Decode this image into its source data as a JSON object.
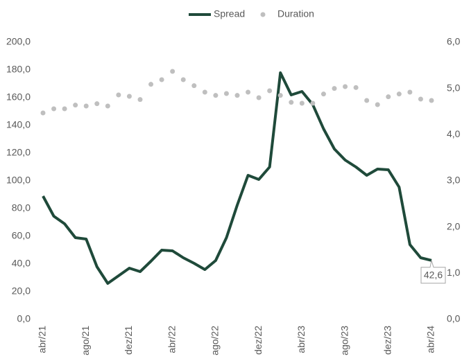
{
  "chart_data": {
    "type": "line",
    "categories": [
      "abr/21",
      null,
      null,
      null,
      "ago/21",
      null,
      null,
      null,
      "dez/21",
      null,
      null,
      null,
      "abr/22",
      null,
      null,
      null,
      "ago/22",
      null,
      null,
      null,
      "dez/22",
      null,
      null,
      null,
      "abr/23",
      null,
      null,
      null,
      "ago/23",
      null,
      null,
      null,
      "dez/23",
      null,
      null,
      null,
      "abr/24"
    ],
    "series": [
      {
        "name": "Spread",
        "color": "#1f4a3a",
        "axis": "y",
        "style": "line",
        "values": [
          89,
          74.5,
          69,
          59,
          58,
          38,
          26,
          31.5,
          37,
          34.5,
          42,
          50,
          49.5,
          44.5,
          40.5,
          36,
          42.5,
          59,
          82.5,
          104,
          101,
          110,
          178,
          162,
          164.5,
          155,
          137.5,
          123,
          115,
          110,
          104,
          108.5,
          108,
          95.5,
          54,
          44.5,
          42.6
        ],
        "value_labels": [
          null,
          null,
          null,
          null,
          null,
          null,
          null,
          null,
          null,
          null,
          null,
          null,
          null,
          null,
          null,
          null,
          null,
          null,
          null,
          null,
          null,
          null,
          null,
          null,
          null,
          null,
          null,
          null,
          null,
          null,
          null,
          null,
          null,
          null,
          null,
          null,
          "42,6"
        ]
      },
      {
        "name": "Duration",
        "color": "#bfbfbf",
        "axis": "y2",
        "style": "dots",
        "values": [
          4.47,
          4.56,
          4.56,
          4.64,
          4.62,
          4.67,
          4.62,
          4.86,
          4.83,
          4.76,
          5.09,
          5.19,
          5.37,
          5.19,
          5.06,
          4.92,
          4.85,
          4.89,
          4.85,
          4.92,
          4.8,
          4.95,
          4.85,
          4.7,
          4.68,
          4.68,
          4.88,
          5.0,
          5.04,
          5.02,
          4.74,
          4.65,
          4.82,
          4.88,
          4.92,
          4.77,
          4.74
        ]
      }
    ],
    "ylim": [
      0,
      200
    ],
    "yticks": [
      {
        "value": 0,
        "label": "0,0"
      },
      {
        "value": 20,
        "label": "20,0"
      },
      {
        "value": 40,
        "label": "40,0"
      },
      {
        "value": 60,
        "label": "60,0"
      },
      {
        "value": 80,
        "label": "80,0"
      },
      {
        "value": 100,
        "label": "100,0"
      },
      {
        "value": 120,
        "label": "120,0"
      },
      {
        "value": 140,
        "label": "140,0"
      },
      {
        "value": 160,
        "label": "160,0"
      },
      {
        "value": 180,
        "label": "180,0"
      },
      {
        "value": 200,
        "label": "200,0"
      }
    ],
    "y2lim": [
      0,
      6
    ],
    "y2ticks": [
      {
        "value": 0,
        "label": "0,0"
      },
      {
        "value": 1,
        "label": "1,0"
      },
      {
        "value": 2,
        "label": "2,0"
      },
      {
        "value": 3,
        "label": "3,0"
      },
      {
        "value": 4,
        "label": "4,0"
      },
      {
        "value": 5,
        "label": "5,0"
      },
      {
        "value": 6,
        "label": "6,0"
      }
    ],
    "grid": false,
    "legend": "top"
  }
}
